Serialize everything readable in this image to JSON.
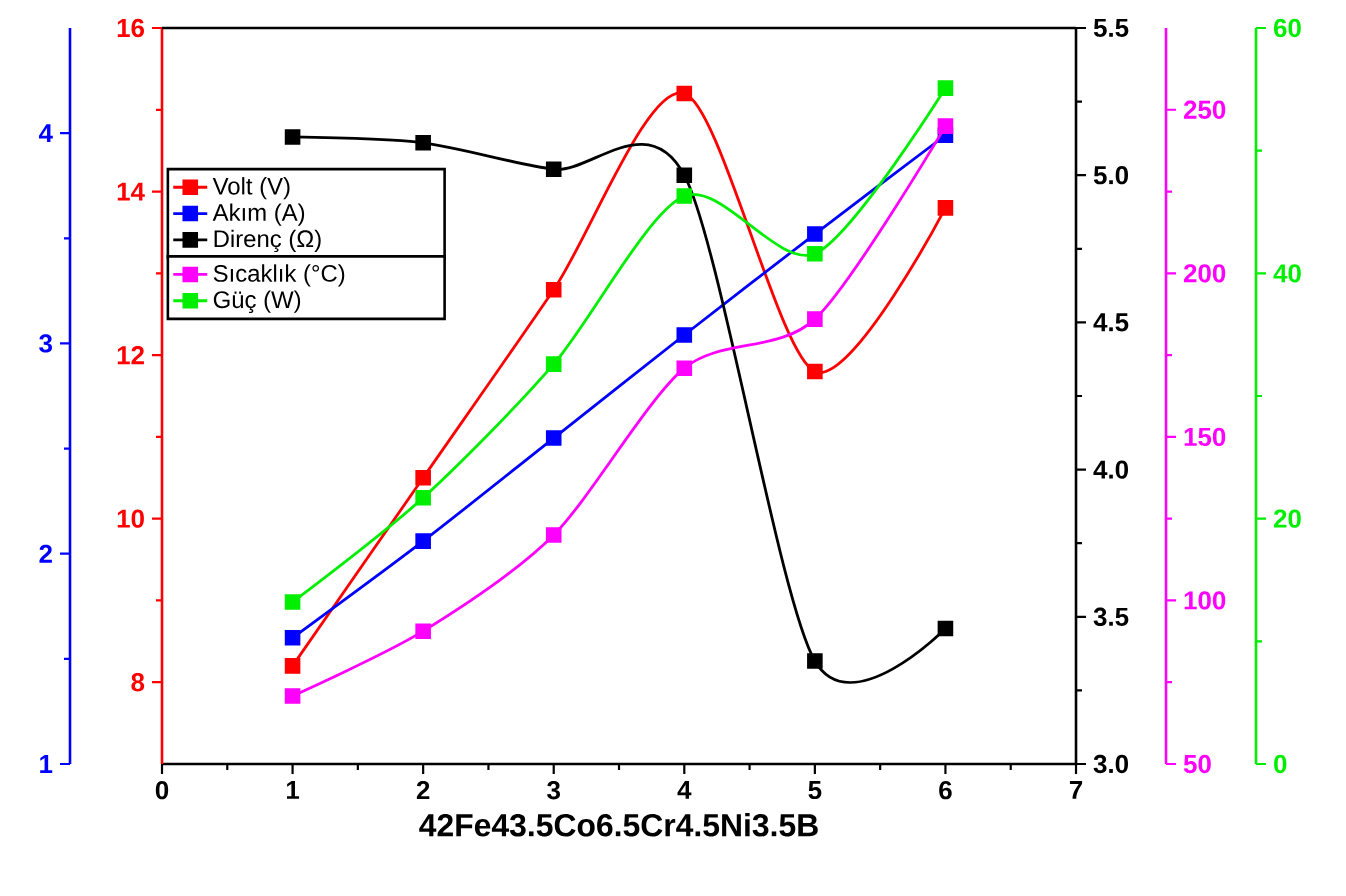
{
  "chart_data": [
    {
      "type": "line",
      "xlabel": "42Fe43.5Co6.5Cr4.5Ni3.5B",
      "x": [
        1,
        2,
        3,
        4,
        5,
        6
      ],
      "xlim": [
        0,
        7
      ],
      "xticks": [
        0,
        1,
        2,
        3,
        4,
        5,
        6,
        7
      ],
      "ylim": [
        7,
        16
      ],
      "yticks": [
        8,
        10,
        12,
        14,
        16
      ],
      "y2lim": [
        1,
        4.5
      ],
      "y2ticks": [
        1,
        2,
        3,
        4
      ],
      "y3lim": [
        3,
        5.5
      ],
      "y3ticks": [
        {
          "value": 3,
          "label": "3.0"
        },
        3.5,
        {
          "value": 4,
          "label": "4.0"
        },
        4.5,
        {
          "value": 5,
          "label": "5.0"
        },
        5.5
      ],
      "marker": "square",
      "line_style": "solid",
      "legend": "left",
      "series": [
        {
          "name": "Volt (V)",
          "color": "#ff0000",
          "values": [
            8.2,
            10.5,
            12.8,
            15.2,
            11.8,
            13.8
          ]
        },
        {
          "name": "Akım (A)",
          "color": "#0000ff",
          "axis": "y2",
          "values": [
            1.6,
            2.06,
            2.55,
            3.04,
            3.52,
            3.99
          ]
        },
        {
          "name": "Direnç (Ω)",
          "color": "#000000",
          "axis": "y3",
          "values": [
            5.13,
            5.11,
            5.02,
            5.0,
            3.35,
            3.46
          ]
        }
      ]
    },
    {
      "type": "line",
      "x": [
        1,
        2,
        3,
        4,
        5,
        6
      ],
      "xlim": [
        0,
        7
      ],
      "tick_labels": "y",
      "ylim": [
        50,
        275
      ],
      "yticks": [
        50,
        100,
        150,
        200,
        250
      ],
      "y2lim": [
        0,
        60
      ],
      "y2ticks": [
        0,
        20,
        40,
        60
      ],
      "marker": "square",
      "line_style": "solid",
      "legend": "left",
      "series": [
        {
          "name": "Sıcaklık (°C)",
          "color": "#ff00ff",
          "values": [
            70.8,
            90.6,
            120,
            171,
            186,
            245
          ]
        },
        {
          "name": "Güç (W)",
          "color": "#00ee00",
          "axis": "y2",
          "values": [
            13.2,
            21.7,
            32.6,
            46.3,
            41.6,
            55.1
          ]
        }
      ]
    }
  ]
}
